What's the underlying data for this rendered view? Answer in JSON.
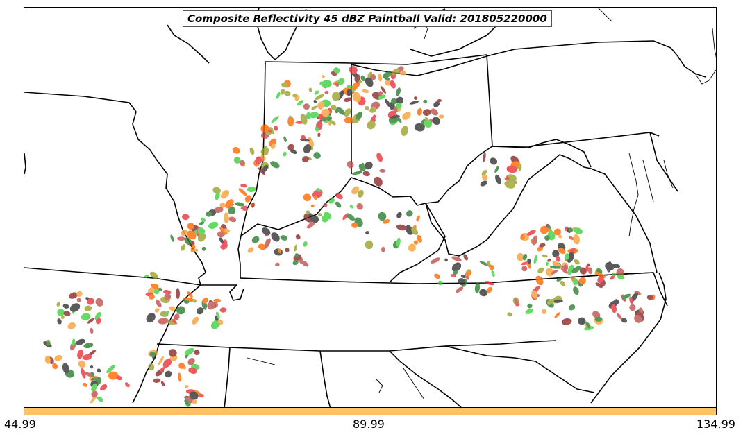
{
  "title": "Composite Reflectivity 45 dBZ Paintball Valid: 201805220000",
  "colorbar": {
    "color": "#ffc266",
    "ticks": [
      "44.99",
      "89.99",
      "134.99"
    ]
  },
  "member_colors": [
    "#f7a13a",
    "#e8333a",
    "#3fcf3f",
    "#2e7d32",
    "#8b2a2a",
    "#9aa02a",
    "#333333",
    "#ff6a00",
    "#c0504d"
  ],
  "map_features": [
    "state-borders",
    "coastline",
    "great-lakes",
    "paintball-reflectivity-blobs"
  ]
}
